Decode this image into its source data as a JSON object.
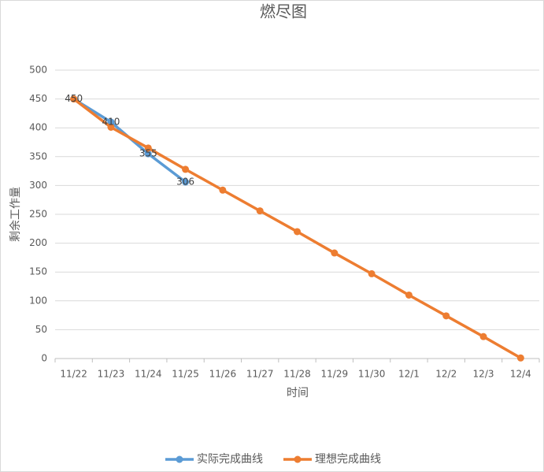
{
  "chart_data": {
    "type": "line",
    "title": "燃尽图",
    "x_label": "时间",
    "y_label": "剩余工作量",
    "categories": [
      "11/22",
      "11/23",
      "11/24",
      "11/25",
      "11/26",
      "11/27",
      "11/28",
      "11/29",
      "11/30",
      "12/1",
      "12/2",
      "12/3",
      "12/4"
    ],
    "series": [
      {
        "name": "实际完成曲线",
        "color": "#5b9bd5",
        "values": [
          450,
          410,
          355,
          306,
          null,
          null,
          null,
          null,
          null,
          null,
          null,
          null,
          null
        ]
      },
      {
        "name": "理想完成曲线",
        "color": "#ed7d31",
        "values": [
          450,
          401,
          365,
          328,
          292,
          256,
          220,
          183,
          147,
          110,
          74,
          38,
          1
        ]
      }
    ],
    "ylim": [
      0,
      500
    ],
    "yticks": [
      0,
      50,
      100,
      150,
      200,
      250,
      300,
      350,
      400,
      450,
      500
    ],
    "grid": true,
    "legend": "bottom"
  }
}
